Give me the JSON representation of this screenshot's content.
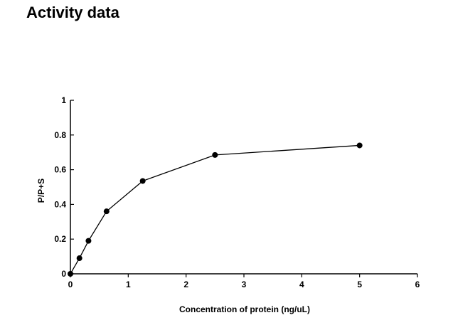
{
  "page": {
    "title": "Activity data"
  },
  "chart_data": {
    "type": "line",
    "title": "",
    "xlabel": "Concentration of protein (ng/uL)",
    "ylabel": "P/P+S",
    "xlim": [
      0,
      6
    ],
    "ylim": [
      0,
      1
    ],
    "x_ticks": [
      0,
      1,
      2,
      3,
      4,
      5,
      6
    ],
    "y_ticks": [
      0,
      0.2,
      0.4,
      0.6,
      0.8,
      1
    ],
    "x_tick_labels": [
      "0",
      "1",
      "2",
      "3",
      "4",
      "5",
      "6"
    ],
    "y_tick_labels": [
      "0",
      "0.2",
      "0.4",
      "0.6",
      "0.8",
      "1"
    ],
    "grid": false,
    "legend": "none",
    "series": [
      {
        "color": "#000000",
        "marker": "circle",
        "points": [
          {
            "x": 0,
            "y": 0
          },
          {
            "x": 0.156,
            "y": 0.09
          },
          {
            "x": 0.3125,
            "y": 0.19
          },
          {
            "x": 0.625,
            "y": 0.36
          },
          {
            "x": 1.25,
            "y": 0.535
          },
          {
            "x": 2.5,
            "y": 0.685
          },
          {
            "x": 5,
            "y": 0.74
          }
        ]
      }
    ]
  }
}
